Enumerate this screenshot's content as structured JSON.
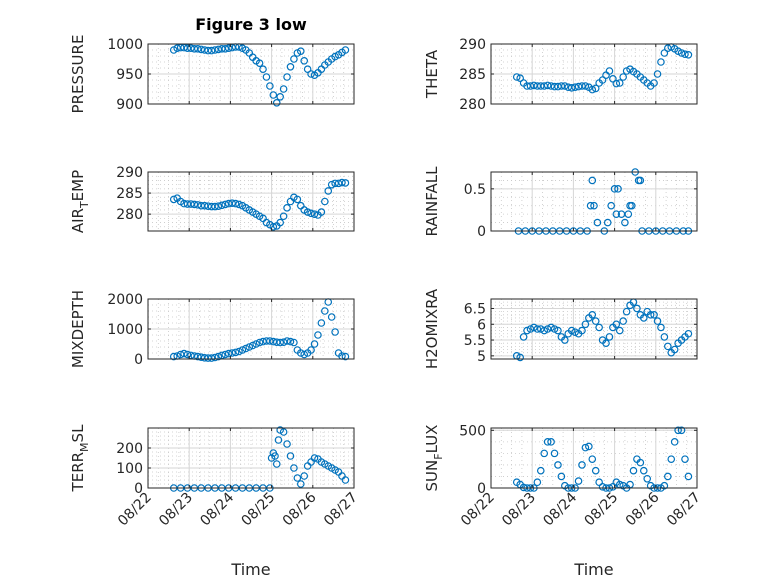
{
  "figure": {
    "title": "Figure 3 low",
    "x_tick_labels": [
      "08/22",
      "08/23",
      "08/24",
      "08/25",
      "08/26",
      "08/27"
    ],
    "x_label": "Time"
  },
  "chart_data": [
    {
      "type": "scatter",
      "ylabel": "PRESSURE",
      "ylim": [
        900,
        1000
      ],
      "yticks": [
        900,
        950,
        1000
      ],
      "grid": "on (major + minor)",
      "marker_color": "#0072BD",
      "x": [
        "08/22 15:00",
        "08/22 17:00",
        "08/22 19:00",
        "08/22 21:00",
        "08/22 23:00",
        "08/23 01:00",
        "08/23 03:00",
        "08/23 05:00",
        "08/23 07:00",
        "08/23 09:00",
        "08/23 11:00",
        "08/23 13:00",
        "08/23 15:00",
        "08/23 17:00",
        "08/23 19:00",
        "08/23 21:00",
        "08/23 23:00",
        "08/24 01:00",
        "08/24 03:00",
        "08/24 05:00",
        "08/24 07:00",
        "08/24 09:00",
        "08/24 11:00",
        "08/24 13:00",
        "08/24 15:00",
        "08/24 17:00",
        "08/24 19:00",
        "08/24 21:00",
        "08/24 23:00",
        "08/25 01:00",
        "08/25 03:00",
        "08/25 05:00",
        "08/25 07:00",
        "08/25 09:00",
        "08/25 11:00",
        "08/25 13:00",
        "08/25 15:00",
        "08/25 17:00",
        "08/25 19:00",
        "08/25 21:00",
        "08/25 23:00",
        "08/26 01:00",
        "08/26 03:00",
        "08/26 05:00",
        "08/26 07:00",
        "08/26 09:00",
        "08/26 11:00",
        "08/26 13:00",
        "08/26 15:00",
        "08/26 17:00",
        "08/26 19:00"
      ],
      "y": [
        990,
        993,
        994,
        994,
        993,
        993,
        992,
        992,
        991,
        990,
        989,
        989,
        990,
        991,
        992,
        992,
        993,
        994,
        995,
        995,
        993,
        990,
        985,
        978,
        972,
        968,
        958,
        945,
        930,
        915,
        902,
        912,
        925,
        945,
        962,
        975,
        985,
        988,
        972,
        958,
        950,
        948,
        952,
        958,
        965,
        970,
        975,
        979,
        982,
        986,
        990
      ]
    },
    {
      "type": "scatter",
      "ylabel": "THETA",
      "ylim": [
        280,
        290
      ],
      "yticks": [
        280,
        285,
        290
      ],
      "grid": "on (major + minor)",
      "marker_color": "#0072BD",
      "x": [
        "08/22 15:00",
        "08/22 17:00",
        "08/22 19:00",
        "08/22 21:00",
        "08/22 23:00",
        "08/23 01:00",
        "08/23 03:00",
        "08/23 05:00",
        "08/23 07:00",
        "08/23 09:00",
        "08/23 11:00",
        "08/23 13:00",
        "08/23 15:00",
        "08/23 17:00",
        "08/23 19:00",
        "08/23 21:00",
        "08/23 23:00",
        "08/24 01:00",
        "08/24 03:00",
        "08/24 05:00",
        "08/24 07:00",
        "08/24 09:00",
        "08/24 11:00",
        "08/24 13:00",
        "08/24 15:00",
        "08/24 17:00",
        "08/24 19:00",
        "08/24 21:00",
        "08/24 23:00",
        "08/25 01:00",
        "08/25 03:00",
        "08/25 05:00",
        "08/25 07:00",
        "08/25 09:00",
        "08/25 11:00",
        "08/25 13:00",
        "08/25 15:00",
        "08/25 17:00",
        "08/25 19:00",
        "08/25 21:00",
        "08/25 23:00",
        "08/26 01:00",
        "08/26 03:00",
        "08/26 05:00",
        "08/26 07:00",
        "08/26 09:00",
        "08/26 11:00",
        "08/26 13:00",
        "08/26 15:00",
        "08/26 17:00",
        "08/26 19:00"
      ],
      "y": [
        284.5,
        284.3,
        283.5,
        283.0,
        283.0,
        283.1,
        283.0,
        283.0,
        283.0,
        283.1,
        283.0,
        282.9,
        282.9,
        283.0,
        283.0,
        282.8,
        282.7,
        282.8,
        282.9,
        283.0,
        283.0,
        282.8,
        282.4,
        282.6,
        283.5,
        284.0,
        284.8,
        285.5,
        284.2,
        283.4,
        283.5,
        284.5,
        285.5,
        285.8,
        285.4,
        285.0,
        284.5,
        284.0,
        283.5,
        283.0,
        283.5,
        285.0,
        287.0,
        288.5,
        289.3,
        289.5,
        289.2,
        288.8,
        288.5,
        288.3,
        288.2
      ]
    },
    {
      "type": "scatter",
      "ylabel": "AIR_TEMP",
      "ylim": [
        276,
        290
      ],
      "yticks": [
        280,
        285,
        290
      ],
      "grid": "on (major + minor)",
      "marker_color": "#0072BD",
      "x": [
        "08/22 15:00",
        "08/22 17:00",
        "08/22 19:00",
        "08/22 21:00",
        "08/22 23:00",
        "08/23 01:00",
        "08/23 03:00",
        "08/23 05:00",
        "08/23 07:00",
        "08/23 09:00",
        "08/23 11:00",
        "08/23 13:00",
        "08/23 15:00",
        "08/23 17:00",
        "08/23 19:00",
        "08/23 21:00",
        "08/23 23:00",
        "08/24 01:00",
        "08/24 03:00",
        "08/24 05:00",
        "08/24 07:00",
        "08/24 09:00",
        "08/24 11:00",
        "08/24 13:00",
        "08/24 15:00",
        "08/24 17:00",
        "08/24 19:00",
        "08/24 21:00",
        "08/24 23:00",
        "08/25 01:00",
        "08/25 03:00",
        "08/25 05:00",
        "08/25 07:00",
        "08/25 09:00",
        "08/25 11:00",
        "08/25 13:00",
        "08/25 15:00",
        "08/25 17:00",
        "08/25 19:00",
        "08/25 21:00",
        "08/25 23:00",
        "08/26 01:00",
        "08/26 03:00",
        "08/26 05:00",
        "08/26 07:00",
        "08/26 09:00",
        "08/26 11:00",
        "08/26 13:00",
        "08/26 15:00",
        "08/26 17:00",
        "08/26 19:00"
      ],
      "y": [
        283.5,
        283.8,
        283.0,
        282.5,
        282.4,
        282.4,
        282.3,
        282.2,
        282.0,
        282.0,
        281.9,
        281.8,
        281.8,
        281.9,
        282.1,
        282.3,
        282.5,
        282.6,
        282.5,
        282.3,
        282.0,
        281.5,
        281.0,
        280.5,
        280.0,
        279.5,
        279.0,
        278.0,
        277.5,
        277.0,
        277.2,
        278.0,
        279.5,
        281.5,
        283.0,
        284.0,
        283.5,
        282.0,
        281.0,
        280.5,
        280.2,
        280.0,
        279.8,
        280.5,
        283.0,
        285.5,
        287.0,
        287.3,
        287.3,
        287.5,
        287.4
      ]
    },
    {
      "type": "scatter",
      "ylabel": "RAINFALL",
      "ylim": [
        0,
        0.7
      ],
      "yticks": [
        0,
        0.5
      ],
      "grid": "on (major + minor)",
      "marker_color": "#0072BD",
      "x": [
        "08/22 16:00",
        "08/22 20:00",
        "08/23 00:00",
        "08/23 04:00",
        "08/23 08:00",
        "08/23 12:00",
        "08/23 16:00",
        "08/23 20:00",
        "08/24 00:00",
        "08/24 04:00",
        "08/24 08:00",
        "08/24 10:00",
        "08/24 11:00",
        "08/24 12:00",
        "08/24 14:00",
        "08/24 18:00",
        "08/24 20:00",
        "08/24 22:00",
        "08/25 00:00",
        "08/25 01:00",
        "08/25 02:00",
        "08/25 04:00",
        "08/25 06:00",
        "08/25 08:00",
        "08/25 09:00",
        "08/25 10:00",
        "08/25 12:00",
        "08/25 14:00",
        "08/25 15:00",
        "08/25 16:00",
        "08/25 20:00",
        "08/26 00:00",
        "08/26 04:00",
        "08/26 08:00",
        "08/26 12:00",
        "08/26 16:00",
        "08/26 19:00"
      ],
      "y": [
        0,
        0,
        0,
        0,
        0,
        0,
        0,
        0,
        0,
        0,
        0,
        0.3,
        0.6,
        0.3,
        0.1,
        0,
        0.1,
        0.3,
        0.5,
        0.2,
        0.5,
        0.2,
        0.1,
        0.2,
        0.3,
        0.3,
        0.7,
        0.6,
        0.6,
        0,
        0,
        0,
        0,
        0,
        0,
        0,
        0
      ]
    },
    {
      "type": "scatter",
      "ylabel": "MIXDEPTH",
      "ylim": [
        0,
        2000
      ],
      "yticks": [
        0,
        1000,
        2000
      ],
      "grid": "on (major + minor)",
      "marker_color": "#0072BD",
      "x": [
        "08/22 15:00",
        "08/22 17:00",
        "08/22 19:00",
        "08/22 21:00",
        "08/22 23:00",
        "08/23 01:00",
        "08/23 03:00",
        "08/23 05:00",
        "08/23 07:00",
        "08/23 09:00",
        "08/23 11:00",
        "08/23 13:00",
        "08/23 15:00",
        "08/23 17:00",
        "08/23 19:00",
        "08/23 21:00",
        "08/23 23:00",
        "08/24 01:00",
        "08/24 03:00",
        "08/24 05:00",
        "08/24 07:00",
        "08/24 09:00",
        "08/24 11:00",
        "08/24 13:00",
        "08/24 15:00",
        "08/24 17:00",
        "08/24 19:00",
        "08/24 21:00",
        "08/24 23:00",
        "08/25 01:00",
        "08/25 03:00",
        "08/25 05:00",
        "08/25 07:00",
        "08/25 09:00",
        "08/25 11:00",
        "08/25 13:00",
        "08/25 15:00",
        "08/25 17:00",
        "08/25 19:00",
        "08/25 21:00",
        "08/25 23:00",
        "08/26 01:00",
        "08/26 03:00",
        "08/26 05:00",
        "08/26 07:00",
        "08/26 09:00",
        "08/26 11:00",
        "08/26 13:00",
        "08/26 15:00",
        "08/26 17:00",
        "08/26 19:00"
      ],
      "y": [
        80,
        100,
        150,
        180,
        150,
        120,
        100,
        80,
        60,
        40,
        30,
        30,
        50,
        80,
        120,
        150,
        180,
        200,
        220,
        250,
        300,
        350,
        400,
        450,
        500,
        550,
        580,
        600,
        600,
        580,
        560,
        550,
        560,
        600,
        580,
        550,
        300,
        200,
        150,
        200,
        300,
        500,
        800,
        1200,
        1600,
        1900,
        1400,
        900,
        200,
        100,
        80
      ]
    },
    {
      "type": "scatter",
      "ylabel": "H2OMIXRA",
      "ylim": [
        4.9,
        6.8
      ],
      "yticks": [
        5,
        5.5,
        6,
        6.5
      ],
      "grid": "on (major + minor)",
      "marker_color": "#0072BD",
      "x": [
        "08/22 15:00",
        "08/22 17:00",
        "08/22 19:00",
        "08/22 21:00",
        "08/22 23:00",
        "08/23 01:00",
        "08/23 03:00",
        "08/23 05:00",
        "08/23 07:00",
        "08/23 09:00",
        "08/23 11:00",
        "08/23 13:00",
        "08/23 15:00",
        "08/23 17:00",
        "08/23 19:00",
        "08/23 21:00",
        "08/23 23:00",
        "08/24 01:00",
        "08/24 03:00",
        "08/24 05:00",
        "08/24 07:00",
        "08/24 09:00",
        "08/24 11:00",
        "08/24 13:00",
        "08/24 15:00",
        "08/24 17:00",
        "08/24 19:00",
        "08/24 21:00",
        "08/24 23:00",
        "08/25 01:00",
        "08/25 03:00",
        "08/25 05:00",
        "08/25 07:00",
        "08/25 09:00",
        "08/25 11:00",
        "08/25 13:00",
        "08/25 15:00",
        "08/25 17:00",
        "08/25 19:00",
        "08/25 21:00",
        "08/25 23:00",
        "08/26 01:00",
        "08/26 03:00",
        "08/26 05:00",
        "08/26 07:00",
        "08/26 09:00",
        "08/26 11:00",
        "08/26 13:00",
        "08/26 15:00",
        "08/26 17:00",
        "08/26 19:00"
      ],
      "y": [
        5.0,
        4.95,
        5.6,
        5.8,
        5.85,
        5.9,
        5.85,
        5.85,
        5.8,
        5.85,
        5.9,
        5.85,
        5.8,
        5.6,
        5.5,
        5.7,
        5.8,
        5.75,
        5.7,
        5.8,
        6.0,
        6.2,
        6.3,
        6.1,
        5.9,
        5.5,
        5.4,
        5.6,
        5.9,
        6.0,
        5.8,
        6.1,
        6.4,
        6.6,
        6.7,
        6.5,
        6.3,
        6.2,
        6.4,
        6.3,
        6.3,
        6.1,
        5.9,
        5.6,
        5.3,
        5.1,
        5.2,
        5.4,
        5.5,
        5.6,
        5.7
      ]
    },
    {
      "type": "scatter",
      "ylabel": "TERR_MSL",
      "ylim": [
        0,
        300
      ],
      "yticks": [
        0,
        100,
        200
      ],
      "grid": "on (major + minor)",
      "marker_color": "#0072BD",
      "x": [
        "08/22 15:00",
        "08/22 19:00",
        "08/22 23:00",
        "08/23 03:00",
        "08/23 07:00",
        "08/23 11:00",
        "08/23 15:00",
        "08/23 19:00",
        "08/23 23:00",
        "08/24 03:00",
        "08/24 07:00",
        "08/24 11:00",
        "08/24 15:00",
        "08/24 19:00",
        "08/24 23:00",
        "08/25 00:00",
        "08/25 01:00",
        "08/25 02:00",
        "08/25 03:00",
        "08/25 04:00",
        "08/25 05:00",
        "08/25 07:00",
        "08/25 09:00",
        "08/25 11:00",
        "08/25 13:00",
        "08/25 15:00",
        "08/25 17:00",
        "08/25 19:00",
        "08/25 21:00",
        "08/25 23:00",
        "08/26 01:00",
        "08/26 03:00",
        "08/26 05:00",
        "08/26 07:00",
        "08/26 09:00",
        "08/26 11:00",
        "08/26 13:00",
        "08/26 15:00",
        "08/26 17:00",
        "08/26 19:00"
      ],
      "y": [
        0,
        0,
        0,
        0,
        0,
        0,
        0,
        0,
        0,
        0,
        0,
        0,
        0,
        0,
        0,
        150,
        175,
        160,
        120,
        240,
        290,
        280,
        220,
        160,
        100,
        50,
        20,
        60,
        110,
        130,
        150,
        145,
        130,
        120,
        110,
        100,
        90,
        80,
        60,
        40
      ]
    },
    {
      "type": "scatter",
      "ylabel": "SUN_FLUX",
      "ylim": [
        0,
        520
      ],
      "yticks": [
        0,
        500
      ],
      "grid": "on (major + minor)",
      "marker_color": "#0072BD",
      "x": [
        "08/22 15:00",
        "08/22 17:00",
        "08/22 19:00",
        "08/22 21:00",
        "08/22 23:00",
        "08/23 01:00",
        "08/23 03:00",
        "08/23 05:00",
        "08/23 07:00",
        "08/23 09:00",
        "08/23 11:00",
        "08/23 13:00",
        "08/23 15:00",
        "08/23 17:00",
        "08/23 19:00",
        "08/23 21:00",
        "08/23 23:00",
        "08/24 01:00",
        "08/24 03:00",
        "08/24 05:00",
        "08/24 07:00",
        "08/24 09:00",
        "08/24 11:00",
        "08/24 13:00",
        "08/24 15:00",
        "08/24 17:00",
        "08/24 19:00",
        "08/24 21:00",
        "08/24 23:00",
        "08/25 01:00",
        "08/25 03:00",
        "08/25 05:00",
        "08/25 07:00",
        "08/25 09:00",
        "08/25 11:00",
        "08/25 13:00",
        "08/25 15:00",
        "08/25 17:00",
        "08/25 19:00",
        "08/25 21:00",
        "08/25 23:00",
        "08/26 01:00",
        "08/26 03:00",
        "08/26 05:00",
        "08/26 07:00",
        "08/26 09:00",
        "08/26 11:00",
        "08/26 13:00",
        "08/26 15:00",
        "08/26 17:00",
        "08/26 19:00"
      ],
      "y": [
        50,
        30,
        5,
        0,
        0,
        0,
        50,
        150,
        300,
        400,
        400,
        300,
        200,
        100,
        20,
        0,
        0,
        0,
        60,
        200,
        350,
        360,
        250,
        150,
        50,
        10,
        0,
        0,
        10,
        50,
        30,
        20,
        0,
        30,
        150,
        250,
        220,
        150,
        80,
        20,
        0,
        0,
        0,
        20,
        100,
        250,
        400,
        500,
        500,
        250,
        100
      ]
    }
  ]
}
